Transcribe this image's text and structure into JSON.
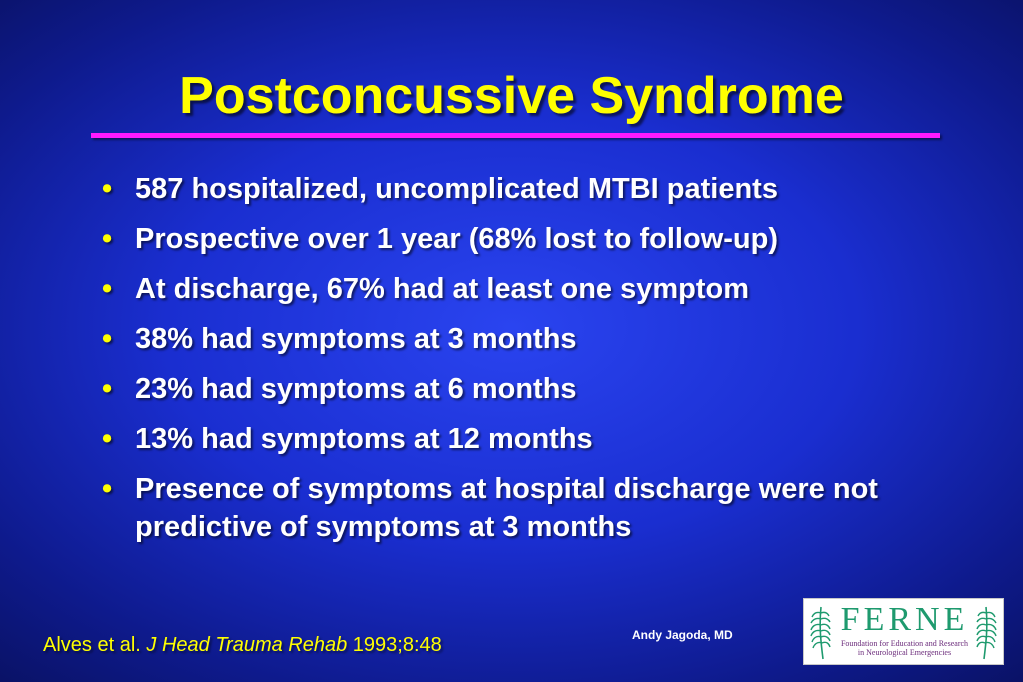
{
  "slide": {
    "title": "Postconcussive Syndrome",
    "bullets": [
      "587 hospitalized, uncomplicated MTBI patients",
      "Prospective over 1 year (68% lost to follow-up)",
      "At discharge, 67% had at least one symptom",
      "38% had symptoms at 3 months",
      "23% had symptoms at 6 months",
      "13% had symptoms at 12 months",
      "Presence of symptoms at hospital discharge were not predictive of symptoms at 3 months"
    ],
    "bullet_glyph": "•",
    "citation": {
      "authors": "Alves et al. ",
      "journal": "J Head Trauma Rehab",
      "ref": " 1993;8:48"
    },
    "author": "Andy Jagoda, MD"
  },
  "logo": {
    "word": "FERNE",
    "tagline_1": "Foundation for Education and Research",
    "tagline_2": "in Neurological Emergencies"
  },
  "colors": {
    "background": "#1a2ed0",
    "title": "#ffff00",
    "rule": "#ff1aff",
    "bullet_text": "#ffffff",
    "citation": "#ffff00",
    "logo_word": "#1e9a6e",
    "logo_tagline": "#6a2a7a"
  }
}
